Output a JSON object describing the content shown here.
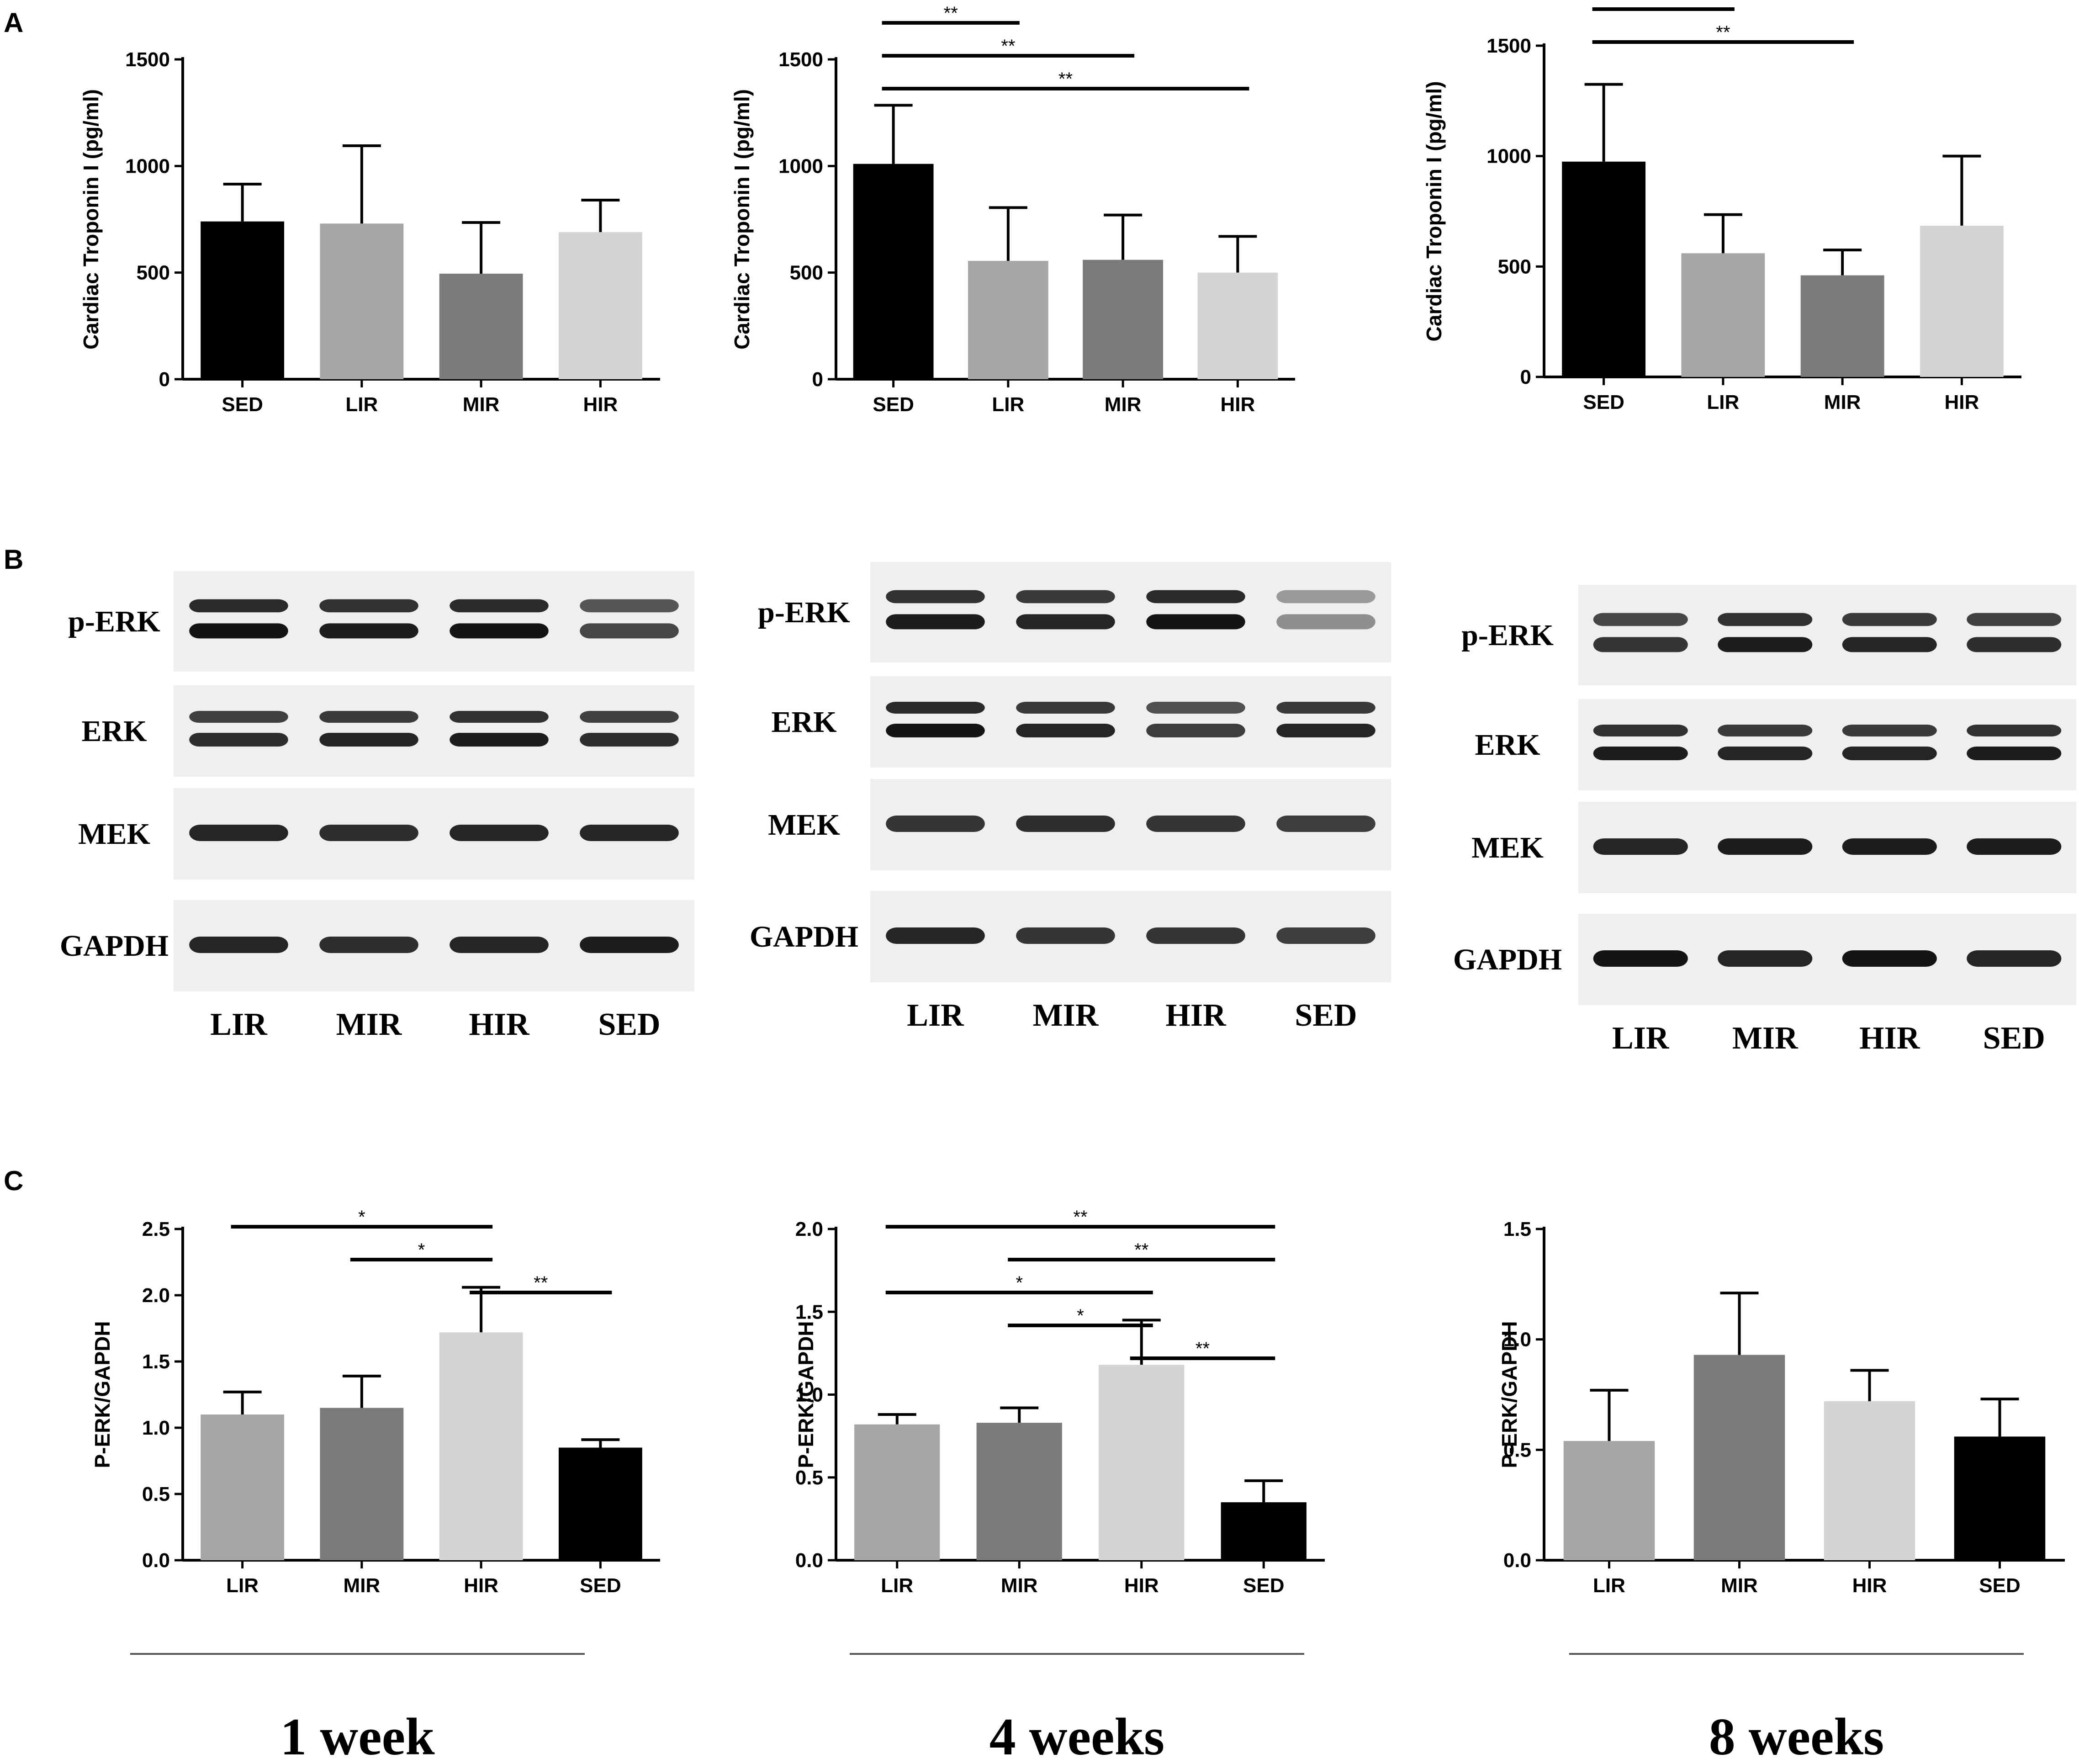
{
  "panels": {
    "A": "A",
    "B": "B",
    "C": "C"
  },
  "colors": {
    "SED": "#000000",
    "LIR": "#a6a6a8",
    "MIR": "#7b7b7b",
    "HIR": "#d4d4d4",
    "axis": "#000000",
    "blot_bg": "#efefef",
    "band": "#141414"
  },
  "timepoints": [
    "1 week",
    "4 weeks",
    "8 weeks"
  ],
  "chart_data": [
    {
      "type": "bar",
      "panel": "A",
      "timepoint": "1 week",
      "ylabel": "Cardiac Troponin I (pg/ml)",
      "categories": [
        "SED",
        "LIR",
        "MIR",
        "HIR"
      ],
      "values": [
        740,
        730,
        495,
        690
      ],
      "errors": [
        175,
        365,
        240,
        150
      ],
      "ylim": [
        0,
        1500
      ],
      "yticks": [
        "0",
        "500",
        "1000",
        "1500"
      ],
      "significance": []
    },
    {
      "type": "bar",
      "panel": "A",
      "timepoint": "4 weeks",
      "ylabel": "Cardiac Troponin I (pg/ml)",
      "categories": [
        "SED",
        "LIR",
        "MIR",
        "HIR"
      ],
      "values": [
        1010,
        555,
        560,
        500
      ],
      "errors": [
        275,
        250,
        210,
        170
      ],
      "ylim": [
        0,
        1500
      ],
      "yticks": [
        "0",
        "500",
        "1000",
        "1500"
      ],
      "significance": [
        {
          "from": 0,
          "to": 1,
          "label": "**"
        },
        {
          "from": 0,
          "to": 2,
          "label": "**"
        },
        {
          "from": 0,
          "to": 3,
          "label": "**"
        }
      ]
    },
    {
      "type": "bar",
      "panel": "A",
      "timepoint": "8 weeks",
      "ylabel": "Cardiac Troponin I (pg/ml)",
      "categories": [
        "SED",
        "LIR",
        "MIR",
        "HIR"
      ],
      "values": [
        975,
        560,
        460,
        685
      ],
      "errors": [
        350,
        175,
        115,
        315
      ],
      "ylim": [
        0,
        1500
      ],
      "yticks": [
        "0",
        "500",
        "1000",
        "1500"
      ],
      "significance": [
        {
          "from": 0,
          "to": 1,
          "label": "**"
        },
        {
          "from": 0,
          "to": 2,
          "label": "**"
        }
      ]
    },
    {
      "type": "bar",
      "panel": "C",
      "timepoint": "1 week",
      "ylabel": "P-ERK/GAPDH",
      "categories": [
        "LIR",
        "MIR",
        "HIR",
        "SED"
      ],
      "values": [
        1.1,
        1.15,
        1.72,
        0.85
      ],
      "errors": [
        0.17,
        0.24,
        0.34,
        0.06
      ],
      "ylim": [
        0,
        2.5
      ],
      "yticks": [
        "0.0",
        "0.5",
        "1.0",
        "1.5",
        "2.0",
        "2.5"
      ],
      "significance": [
        {
          "from": 0,
          "to": 2,
          "label": "*"
        },
        {
          "from": 1,
          "to": 2,
          "label": "*"
        },
        {
          "from": 2,
          "to": 3,
          "label": "**"
        }
      ]
    },
    {
      "type": "bar",
      "panel": "C",
      "timepoint": "4 weeks",
      "ylabel": "P-ERK/GAPDH",
      "categories": [
        "LIR",
        "MIR",
        "HIR",
        "SED"
      ],
      "values": [
        0.82,
        0.83,
        1.18,
        0.35
      ],
      "errors": [
        0.06,
        0.09,
        0.27,
        0.13
      ],
      "ylim": [
        0,
        2.0
      ],
      "yticks": [
        "0.0",
        "0.5",
        "1.0",
        "1.5",
        "2.0"
      ],
      "significance": [
        {
          "from": 0,
          "to": 3,
          "label": "**"
        },
        {
          "from": 1,
          "to": 3,
          "label": "**"
        },
        {
          "from": 0,
          "to": 2,
          "label": "*"
        },
        {
          "from": 1,
          "to": 2,
          "label": "*"
        },
        {
          "from": 2,
          "to": 3,
          "label": "**"
        }
      ]
    },
    {
      "type": "bar",
      "panel": "C",
      "timepoint": "8 weeks",
      "ylabel": "P-ERK/GAPDH",
      "categories": [
        "LIR",
        "MIR",
        "HIR",
        "SED"
      ],
      "values": [
        0.54,
        0.93,
        0.72,
        0.56
      ],
      "errors": [
        0.23,
        0.28,
        0.14,
        0.17
      ],
      "ylim": [
        0,
        1.5
      ],
      "yticks": [
        "0.0",
        "0.5",
        "1.0",
        "1.5"
      ],
      "significance": []
    }
  ],
  "blots": [
    {
      "timepoint": "1 week",
      "proteins": [
        "p-ERK",
        "ERK",
        "MEK",
        "GAPDH"
      ],
      "lanes": [
        "LIR",
        "MIR",
        "HIR",
        "SED"
      ]
    },
    {
      "timepoint": "4 weeks",
      "proteins": [
        "p-ERK",
        "ERK",
        "MEK",
        "GAPDH"
      ],
      "lanes": [
        "LIR",
        "MIR",
        "HIR",
        "SED"
      ]
    },
    {
      "timepoint": "8 weeks",
      "proteins": [
        "p-ERK",
        "ERK",
        "MEK",
        "GAPDH"
      ],
      "lanes": [
        "LIR",
        "MIR",
        "HIR",
        "SED"
      ]
    }
  ]
}
